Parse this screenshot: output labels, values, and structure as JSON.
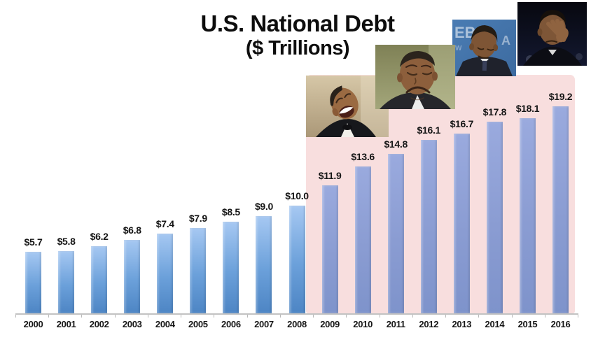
{
  "title": {
    "line1": "U.S. National Debt",
    "line2": "($ Trillions)"
  },
  "chart_data": {
    "type": "bar",
    "title": "U.S. National Debt ($ Trillions)",
    "xlabel": "",
    "ylabel": "",
    "ylim": [
      0,
      19.2
    ],
    "grid": false,
    "legend": false,
    "categories": [
      "2000",
      "2001",
      "2002",
      "2003",
      "2004",
      "2005",
      "2006",
      "2007",
      "2008",
      "2009",
      "2010",
      "2011",
      "2012",
      "2013",
      "2014",
      "2015",
      "2016"
    ],
    "points": [
      {
        "year": "2000",
        "value": 5.7,
        "label": "$5.7",
        "highlighted": false
      },
      {
        "year": "2001",
        "value": 5.8,
        "label": "$5.8",
        "highlighted": false
      },
      {
        "year": "2002",
        "value": 6.2,
        "label": "$6.2",
        "highlighted": false
      },
      {
        "year": "2003",
        "value": 6.8,
        "label": "$6.8",
        "highlighted": false
      },
      {
        "year": "2004",
        "value": 7.4,
        "label": "$7.4",
        "highlighted": false
      },
      {
        "year": "2005",
        "value": 7.9,
        "label": "$7.9",
        "highlighted": false
      },
      {
        "year": "2006",
        "value": 8.5,
        "label": "$8.5",
        "highlighted": false
      },
      {
        "year": "2007",
        "value": 9.0,
        "label": "$9.0",
        "highlighted": false
      },
      {
        "year": "2008",
        "value": 10.0,
        "label": "$10.0",
        "highlighted": false
      },
      {
        "year": "2009",
        "value": 11.9,
        "label": "$11.9",
        "highlighted": true
      },
      {
        "year": "2010",
        "value": 13.6,
        "label": "$13.6",
        "highlighted": true
      },
      {
        "year": "2011",
        "value": 14.8,
        "label": "$14.8",
        "highlighted": true
      },
      {
        "year": "2012",
        "value": 16.1,
        "label": "$16.1",
        "highlighted": true
      },
      {
        "year": "2013",
        "value": 16.7,
        "label": "$16.7",
        "highlighted": true
      },
      {
        "year": "2014",
        "value": 17.8,
        "label": "$17.8",
        "highlighted": true
      },
      {
        "year": "2015",
        "value": 18.1,
        "label": "$18.1",
        "highlighted": true
      },
      {
        "year": "2016",
        "value": 19.2,
        "label": "$19.2",
        "highlighted": true
      }
    ],
    "highlight_region": {
      "from": "2009",
      "to": "2016",
      "color": "#f8dede"
    }
  },
  "colors": {
    "bar_blue_top": "#a6c8f2",
    "bar_blue_bottom": "#4d85c4",
    "bar_muted_top": "#9aaade",
    "bar_muted_bottom": "#7e93cb",
    "highlight_pink": "#f8dede",
    "axis": "#c2c2c2",
    "text": "#111111"
  },
  "images": [
    {
      "name": "obama-laughing-photo",
      "description": "Obama laughing with head tilted back, wearing black tuxedo, beige background"
    },
    {
      "name": "obama-pouting-photo",
      "description": "Obama with exaggerated frown and closed eyes, olive background"
    },
    {
      "name": "obama-head-bowed-photo",
      "description": "Obama with head bowed and eyes down, blue press backdrop with white letters"
    },
    {
      "name": "obama-facepalm-photo",
      "description": "Obama rubbing his eyes with his hand, dark background"
    }
  ]
}
